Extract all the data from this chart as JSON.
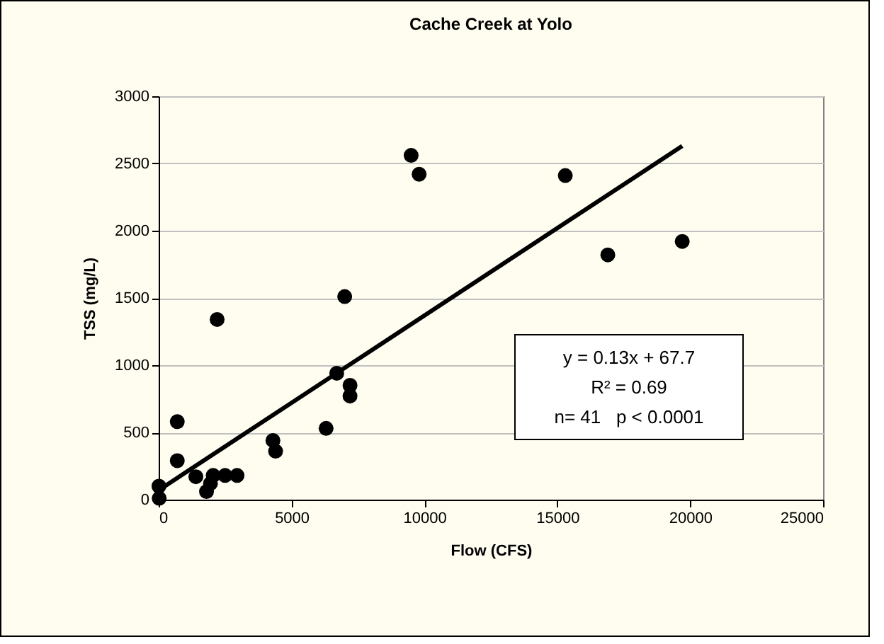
{
  "chart_data": {
    "type": "scatter",
    "title": "Cache Creek at Yolo",
    "xlabel": "Flow (CFS)",
    "ylabel": "TSS (mg/L)",
    "xlim": [
      0,
      25000
    ],
    "xticks": [
      0,
      5000,
      10000,
      15000,
      20000,
      25000
    ],
    "ylim": [
      0,
      3000
    ],
    "yticks": [
      0,
      500,
      1000,
      1500,
      2000,
      2500,
      3000
    ],
    "grid": "y",
    "series": [
      {
        "type": "scatter",
        "color": "#000000",
        "marker": "circle",
        "x": [
          9500,
          9800,
          15300,
          16900,
          19700,
          7000,
          2200,
          6700,
          7200,
          7200,
          6300,
          4300,
          4400,
          700,
          700,
          1400,
          1800,
          1950,
          2050,
          2500,
          2950,
          20,
          10
        ],
        "values": [
          2560,
          2420,
          2410,
          1820,
          1920,
          1510,
          1340,
          940,
          850,
          770,
          530,
          440,
          360,
          580,
          290,
          170,
          60,
          120,
          180,
          180,
          180,
          10,
          100
        ]
      },
      {
        "type": "line",
        "color": "#000000",
        "x": [
          0,
          19700
        ],
        "values": [
          70,
          2630
        ]
      }
    ],
    "annotations": [
      "y = 0.13x + 67.7",
      "R² = 0.69",
      "n= 41   p < 0.0001"
    ]
  }
}
